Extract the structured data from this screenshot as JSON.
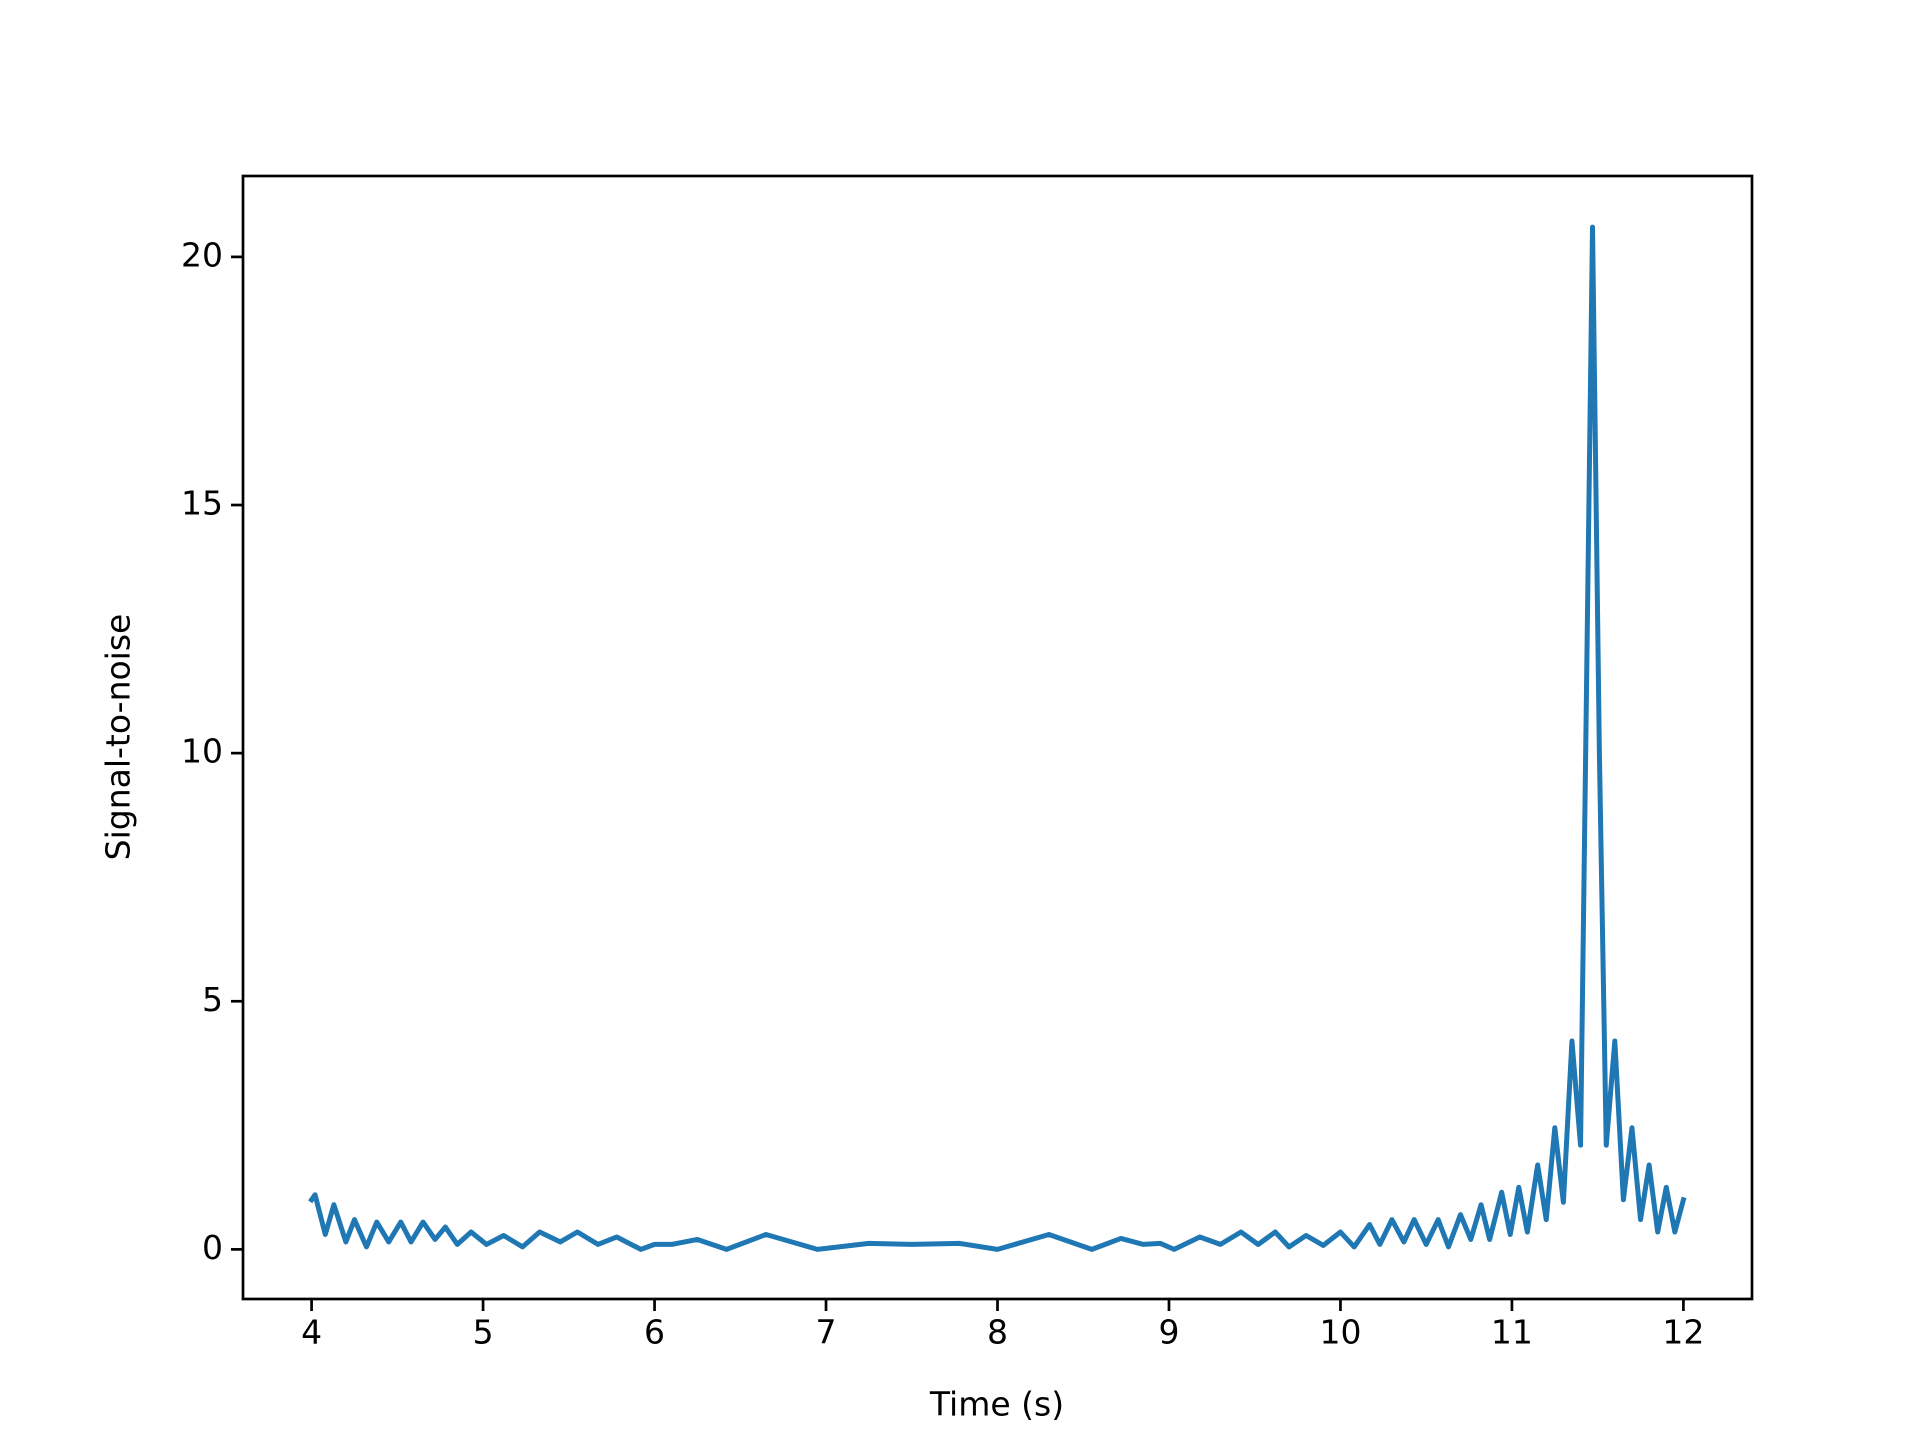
{
  "chart_data": {
    "type": "line",
    "x_label": "Time (s)",
    "y_label": "Signal-to-noise",
    "xlim": [
      3.6,
      12.4
    ],
    "ylim": [
      -1.0,
      21.63
    ],
    "xticks": [
      4,
      5,
      6,
      7,
      8,
      9,
      10,
      11,
      12
    ],
    "yticks": [
      0,
      5,
      10,
      15,
      20
    ],
    "grid": false,
    "series": [
      {
        "color": "#1f77b4",
        "x": [
          4.0,
          4.02,
          4.08,
          4.13,
          4.2,
          4.25,
          4.32,
          4.38,
          4.45,
          4.52,
          4.58,
          4.65,
          4.72,
          4.78,
          4.85,
          4.93,
          5.02,
          5.12,
          5.23,
          5.33,
          5.45,
          5.55,
          5.67,
          5.78,
          5.92,
          6.0,
          6.1,
          6.25,
          6.42,
          6.65,
          6.95,
          7.25,
          7.5,
          7.78,
          8.0,
          8.3,
          8.55,
          8.72,
          8.85,
          8.95,
          9.03,
          9.18,
          9.3,
          9.42,
          9.52,
          9.62,
          9.7,
          9.8,
          9.9,
          10.0,
          10.08,
          10.17,
          10.23,
          10.3,
          10.37,
          10.43,
          10.5,
          10.57,
          10.63,
          10.7,
          10.76,
          10.82,
          10.87,
          10.94,
          10.99,
          11.04,
          11.09,
          11.15,
          11.2,
          11.25,
          11.3,
          11.35,
          11.4,
          11.43,
          11.47,
          11.51,
          11.55,
          11.6,
          11.65,
          11.7,
          11.75,
          11.8,
          11.85,
          11.9,
          11.95,
          12.0
        ],
        "values": [
          1.0,
          1.1,
          0.3,
          0.9,
          0.15,
          0.6,
          0.05,
          0.55,
          0.15,
          0.55,
          0.15,
          0.55,
          0.2,
          0.45,
          0.1,
          0.35,
          0.1,
          0.28,
          0.05,
          0.35,
          0.15,
          0.35,
          0.1,
          0.25,
          0.0,
          0.1,
          0.1,
          0.2,
          0.0,
          0.3,
          0.0,
          0.12,
          0.1,
          0.12,
          0.0,
          0.3,
          0.0,
          0.22,
          0.1,
          0.12,
          0.0,
          0.25,
          0.1,
          0.35,
          0.1,
          0.35,
          0.05,
          0.28,
          0.08,
          0.35,
          0.05,
          0.5,
          0.1,
          0.6,
          0.15,
          0.6,
          0.1,
          0.6,
          0.05,
          0.7,
          0.2,
          0.9,
          0.2,
          1.15,
          0.3,
          1.25,
          0.35,
          1.7,
          0.6,
          2.45,
          0.95,
          4.2,
          2.1,
          10.0,
          20.6,
          10.0,
          2.1,
          4.2,
          1.0,
          2.45,
          0.6,
          1.7,
          0.35,
          1.25,
          0.35,
          1.0
        ]
      }
    ]
  }
}
